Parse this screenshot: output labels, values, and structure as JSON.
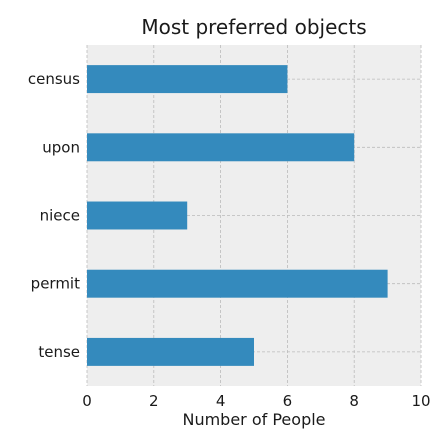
{
  "chart_data": {
    "type": "bar",
    "orientation": "horizontal",
    "title": "Most preferred objects",
    "xlabel": "Number of People",
    "ylabel": "",
    "categories": [
      "tense",
      "permit",
      "niece",
      "upon",
      "census"
    ],
    "values": [
      5,
      9,
      3,
      8,
      6
    ],
    "xlim": [
      0,
      10
    ],
    "xticks": [
      "0",
      "2",
      "4",
      "6",
      "8",
      "10"
    ],
    "grid": true,
    "bar_color": "#348abd",
    "plot_background": "#eeeeee",
    "grid_color": "#bbbbbb"
  }
}
